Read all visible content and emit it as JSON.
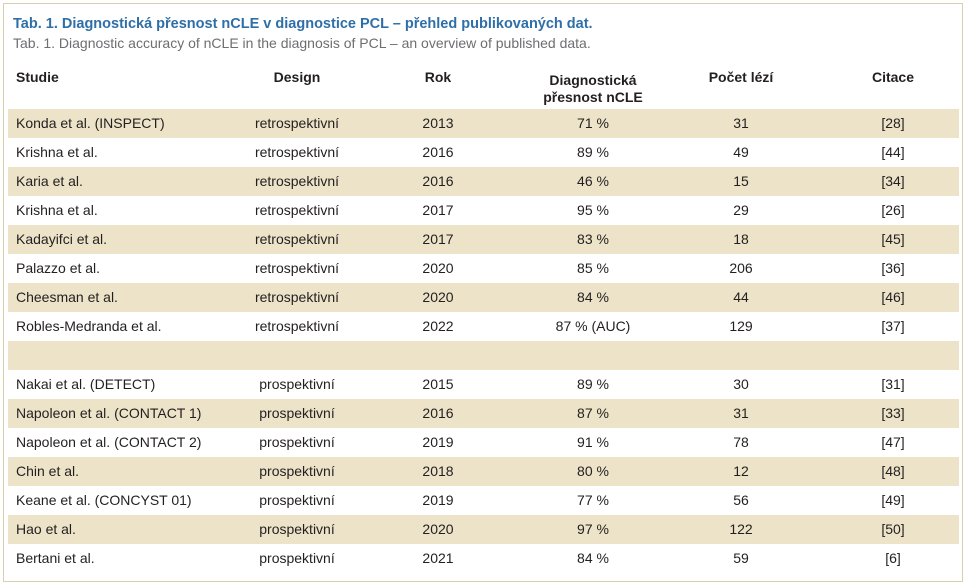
{
  "caption": {
    "cz": "Tab. 1. Diagnostická přesnost nCLE v diagnostice PCL – přehled publikovaných dat.",
    "en": "Tab. 1. Diagnostic accuracy of nCLE in the diagnosis of PCL – an overview of published data."
  },
  "header": {
    "studie": "Studie",
    "design": "Design",
    "rok": "Rok",
    "accuracy_line1": "Diagnostická",
    "accuracy_line2": "přesnost nCLE",
    "pocet": "Počet lézí",
    "citace": "Citace"
  },
  "rows": [
    {
      "studie": "Konda et al. (INSPECT)",
      "design": "retrospektivní",
      "rok": "2013",
      "accuracy": "71 %",
      "pocet": "31",
      "citace": "[28]"
    },
    {
      "studie": "Krishna et al.",
      "design": "retrospektivní",
      "rok": "2016",
      "accuracy": "89 %",
      "pocet": "49",
      "citace": "[44]"
    },
    {
      "studie": "Karia et al.",
      "design": "retrospektivní",
      "rok": "2016",
      "accuracy": "46 %",
      "pocet": "15",
      "citace": "[34]"
    },
    {
      "studie": "Krishna et al.",
      "design": "retrospektivní",
      "rok": "2017",
      "accuracy": "95 %",
      "pocet": "29",
      "citace": "[26]"
    },
    {
      "studie": "Kadayifci et al.",
      "design": "retrospektivní",
      "rok": "2017",
      "accuracy": "83 %",
      "pocet": "18",
      "citace": "[45]"
    },
    {
      "studie": "Palazzo et al.",
      "design": "retrospektivní",
      "rok": "2020",
      "accuracy": "85 %",
      "pocet": "206",
      "citace": "[36]"
    },
    {
      "studie": "Cheesman et al.",
      "design": "retrospektivní",
      "rok": "2020",
      "accuracy": "84 %",
      "pocet": "44",
      "citace": "[46]"
    },
    {
      "studie": "Robles-Medranda et al.",
      "design": "retrospektivní",
      "rok": "2022",
      "accuracy": "87 % (AUC)",
      "pocet": "129",
      "citace": "[37]"
    },
    {
      "studie": "",
      "design": "",
      "rok": "",
      "accuracy": "",
      "pocet": "",
      "citace": ""
    },
    {
      "studie": "Nakai et al. (DETECT)",
      "design": "prospektivní",
      "rok": "2015",
      "accuracy": "89 %",
      "pocet": "30",
      "citace": "[31]"
    },
    {
      "studie": "Napoleon et al. (CONTACT 1)",
      "design": "prospektivní",
      "rok": "2016",
      "accuracy": "87 %",
      "pocet": "31",
      "citace": "[33]"
    },
    {
      "studie": "Napoleon et al. (CONTACT 2)",
      "design": "prospektivní",
      "rok": "2019",
      "accuracy": "91 %",
      "pocet": "78",
      "citace": "[47]"
    },
    {
      "studie": "Chin et al.",
      "design": "prospektivní",
      "rok": "2018",
      "accuracy": "80 %",
      "pocet": "12",
      "citace": "[48]"
    },
    {
      "studie": "Keane et al. (CONCYST 01)",
      "design": "prospektivní",
      "rok": "2019",
      "accuracy": "77 %",
      "pocet": "56",
      "citace": "[49]"
    },
    {
      "studie": "Hao et al.",
      "design": "prospektivní",
      "rok": "2020",
      "accuracy": "97 %",
      "pocet": "122",
      "citace": "[50]"
    },
    {
      "studie": "Bertani et al.",
      "design": "prospektivní",
      "rok": "2021",
      "accuracy": "84 %",
      "pocet": "59",
      "citace": "[6]"
    }
  ],
  "colors": {
    "caption_title": "#2f6fa8",
    "caption_subtitle": "#6d6e71",
    "row_shade": "#ede3c8",
    "frame_border": "#d9cfa8"
  }
}
